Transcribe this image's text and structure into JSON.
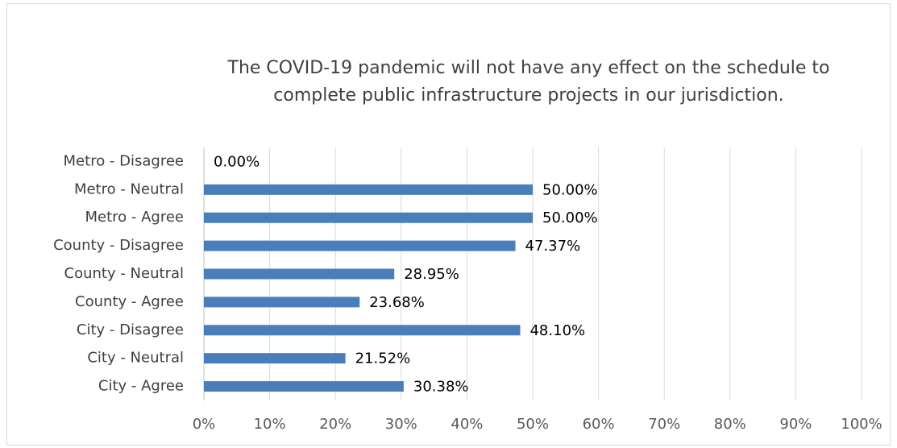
{
  "chart_data": {
    "type": "bar",
    "orientation": "horizontal",
    "title": "The COVID-19 pandemic will not have any effect on the schedule to complete public infrastructure projects in our jurisdiction.",
    "categories": [
      "Metro - Disagree",
      "Metro - Neutral",
      "Metro - Agree",
      "County - Disagree",
      "County - Neutral",
      "County - Agree",
      "City - Disagree",
      "City - Neutral",
      "City - Agree"
    ],
    "values": [
      0,
      50,
      50,
      47.37,
      28.95,
      23.68,
      48.1,
      21.52,
      30.38
    ],
    "value_labels": [
      "0.00%",
      "50.00%",
      "50.00%",
      "47.37%",
      "28.95%",
      "23.68%",
      "48.10%",
      "21.52%",
      "30.38%"
    ],
    "color": "#4a7ebb",
    "xlim": [
      0,
      100
    ],
    "xticks": [
      {
        "value": 0,
        "label": "0%"
      },
      {
        "value": 10,
        "label": "10%"
      },
      {
        "value": 20,
        "label": "20%"
      },
      {
        "value": 30,
        "label": "30%"
      },
      {
        "value": 40,
        "label": "40%"
      },
      {
        "value": 50,
        "label": "50%"
      },
      {
        "value": 60,
        "label": "60%"
      },
      {
        "value": 70,
        "label": "70%"
      },
      {
        "value": 80,
        "label": "80%"
      },
      {
        "value": 90,
        "label": "90%"
      },
      {
        "value": 100,
        "label": "100%"
      }
    ],
    "grid": true
  }
}
